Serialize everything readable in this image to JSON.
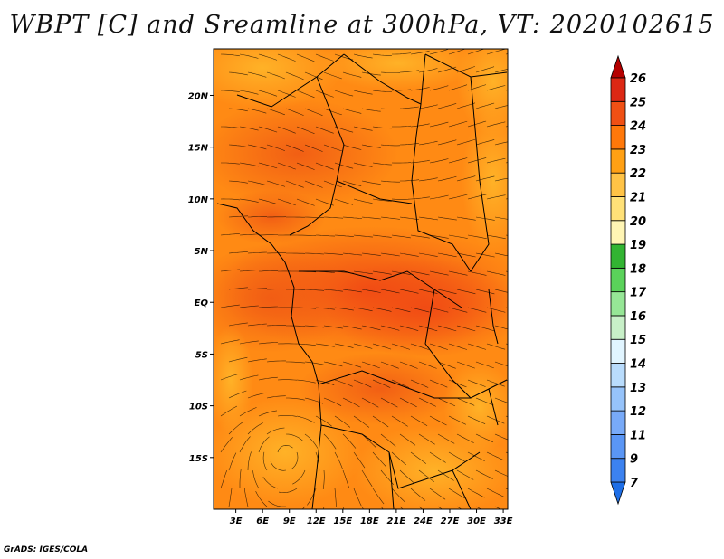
{
  "title": "WBPT [C] and Sreamline at 300hPa, VT: 2020102615",
  "credit": "GrADS: IGES/COLA",
  "map": {
    "lat_labels": [
      "20N",
      "15N",
      "10N",
      "5N",
      "EQ",
      "5S",
      "10S",
      "15S"
    ],
    "lat_values": [
      20,
      15,
      10,
      5,
      0,
      -5,
      -10,
      -15
    ],
    "lon_labels": [
      "3E",
      "6E",
      "9E",
      "12E",
      "15E",
      "18E",
      "21E",
      "24E",
      "27E",
      "30E",
      "33E"
    ],
    "lon_values": [
      3,
      6,
      9,
      12,
      15,
      18,
      21,
      24,
      27,
      30,
      33
    ],
    "lat_range": [
      -20,
      24.5
    ],
    "lon_range": [
      0.5,
      33.5
    ]
  },
  "colorbar": {
    "labels": [
      "7",
      "9",
      "11",
      "12",
      "13",
      "14",
      "15",
      "16",
      "17",
      "18",
      "19",
      "20",
      "21",
      "22",
      "23",
      "24",
      "25",
      "26"
    ],
    "colors": [
      "#1e6ee6",
      "#3c82f0",
      "#5a96f5",
      "#78aaf8",
      "#96c3fa",
      "#b9dcfc",
      "#e1f5ff",
      "#c8f0c8",
      "#96e696",
      "#5ad25a",
      "#32b432",
      "#fff5b4",
      "#ffe178",
      "#ffc346",
      "#ffa014",
      "#ff780a",
      "#f05014",
      "#dc2814",
      "#b40000"
    ]
  }
}
